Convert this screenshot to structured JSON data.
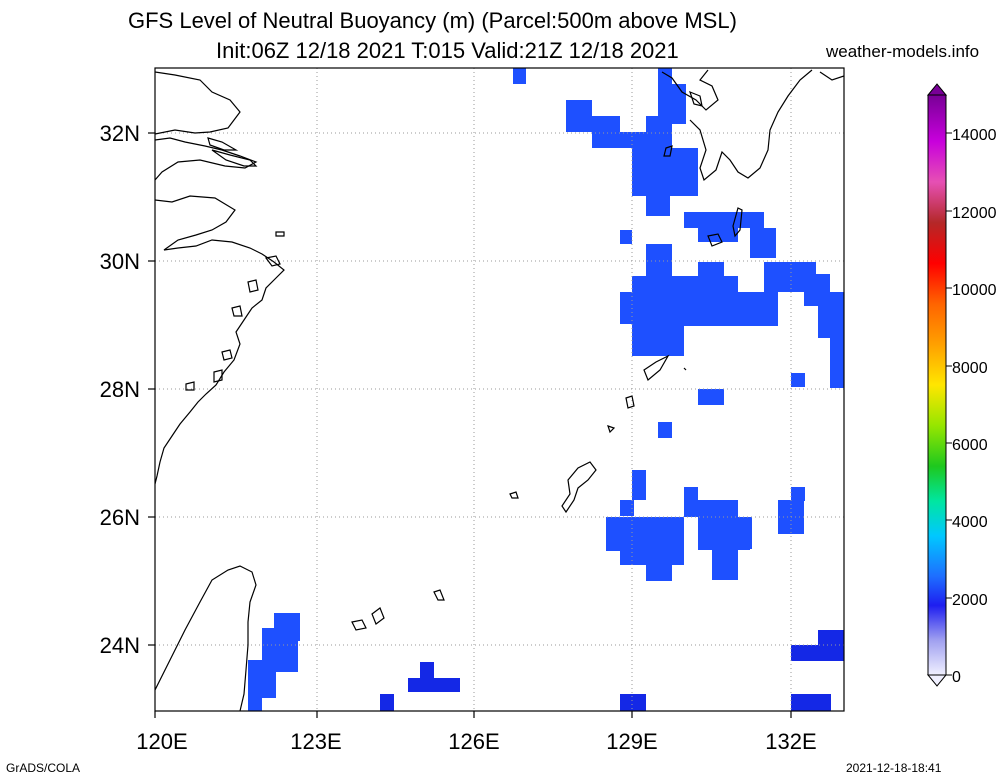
{
  "header": {
    "title_line1": "GFS Level of Neutral Buoyancy (m) (Parcel:500m above MSL)",
    "title_line2": "Init:06Z 12/18 2021 T:015 Valid:21Z 12/18 2021",
    "website": "weather-models.info"
  },
  "map": {
    "lon_labels": [
      "120E",
      "123E",
      "126E",
      "129E",
      "132E"
    ],
    "lat_labels": [
      "32N",
      "30N",
      "28N",
      "26N",
      "24N"
    ],
    "lon_range": [
      120,
      133
    ],
    "lat_range": [
      23,
      33
    ],
    "gridlines": "dotted",
    "field_color": "#1e50ff",
    "field_dark_color": "#1428e6"
  },
  "colorbar": {
    "labels": [
      "0",
      "2000",
      "4000",
      "6000",
      "8000",
      "10000",
      "12000",
      "14000"
    ],
    "min": 0,
    "max": 15000
  },
  "footer": {
    "left": "GrADS/COLA",
    "right": "2021-12-18-18:41"
  }
}
